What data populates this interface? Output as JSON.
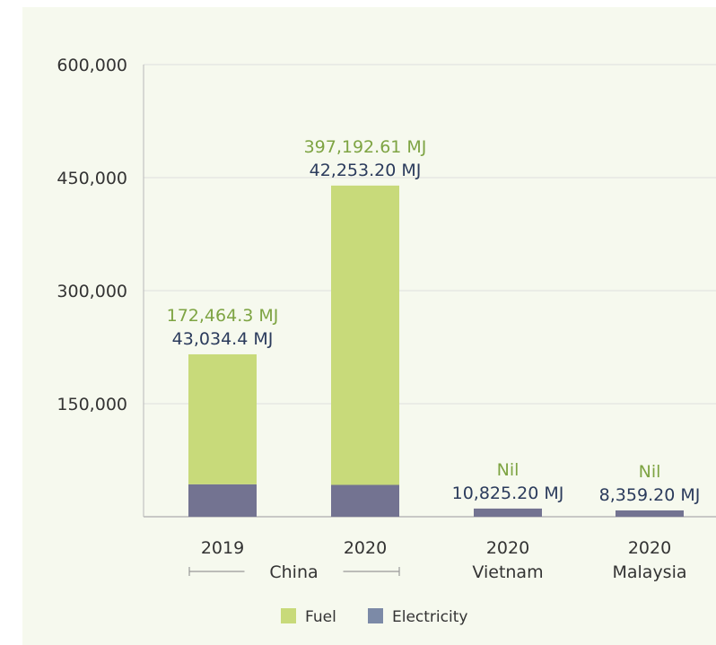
{
  "chart_data": {
    "type": "bar",
    "stacked": true,
    "grid": "horizontal",
    "legend_position": "bottom",
    "ylim": [
      0,
      600000
    ],
    "yticks": [
      {
        "value": 150000,
        "label": "150,000"
      },
      {
        "value": 300000,
        "label": "300,000"
      },
      {
        "value": 450000,
        "label": "450,000"
      },
      {
        "value": 600000,
        "label": "600,000"
      }
    ],
    "categories": [
      {
        "year": "2019",
        "country": ""
      },
      {
        "year": "2020",
        "country": ""
      },
      {
        "year": "2020",
        "country": "Vietnam"
      },
      {
        "year": "2020",
        "country": "Malaysia"
      }
    ],
    "group_label": "China",
    "series": [
      {
        "name": "Electricity",
        "color": "#737391",
        "values": [
          43034.4,
          42253.2,
          10825.2,
          8359.2
        ]
      },
      {
        "name": "Fuel",
        "color": "#c8da7a",
        "values": [
          172464.3,
          397192.61,
          0,
          0
        ]
      }
    ],
    "data_labels": [
      {
        "fuel": "172,464.3 MJ",
        "electricity": "43,034.4 MJ"
      },
      {
        "fuel": "397,192.61 MJ",
        "electricity": "42,253.20 MJ"
      },
      {
        "fuel": "Nil",
        "electricity": "10,825.20 MJ"
      },
      {
        "fuel": "Nil",
        "electricity": "8,359.20 MJ"
      }
    ],
    "label_colors": {
      "fuel": "#7ea443",
      "electricity": "#2b3b5c"
    },
    "legend": [
      {
        "label": "Fuel",
        "color": "#c8da7a"
      },
      {
        "label": "Electricity",
        "color": "#7c8aa7"
      }
    ]
  }
}
